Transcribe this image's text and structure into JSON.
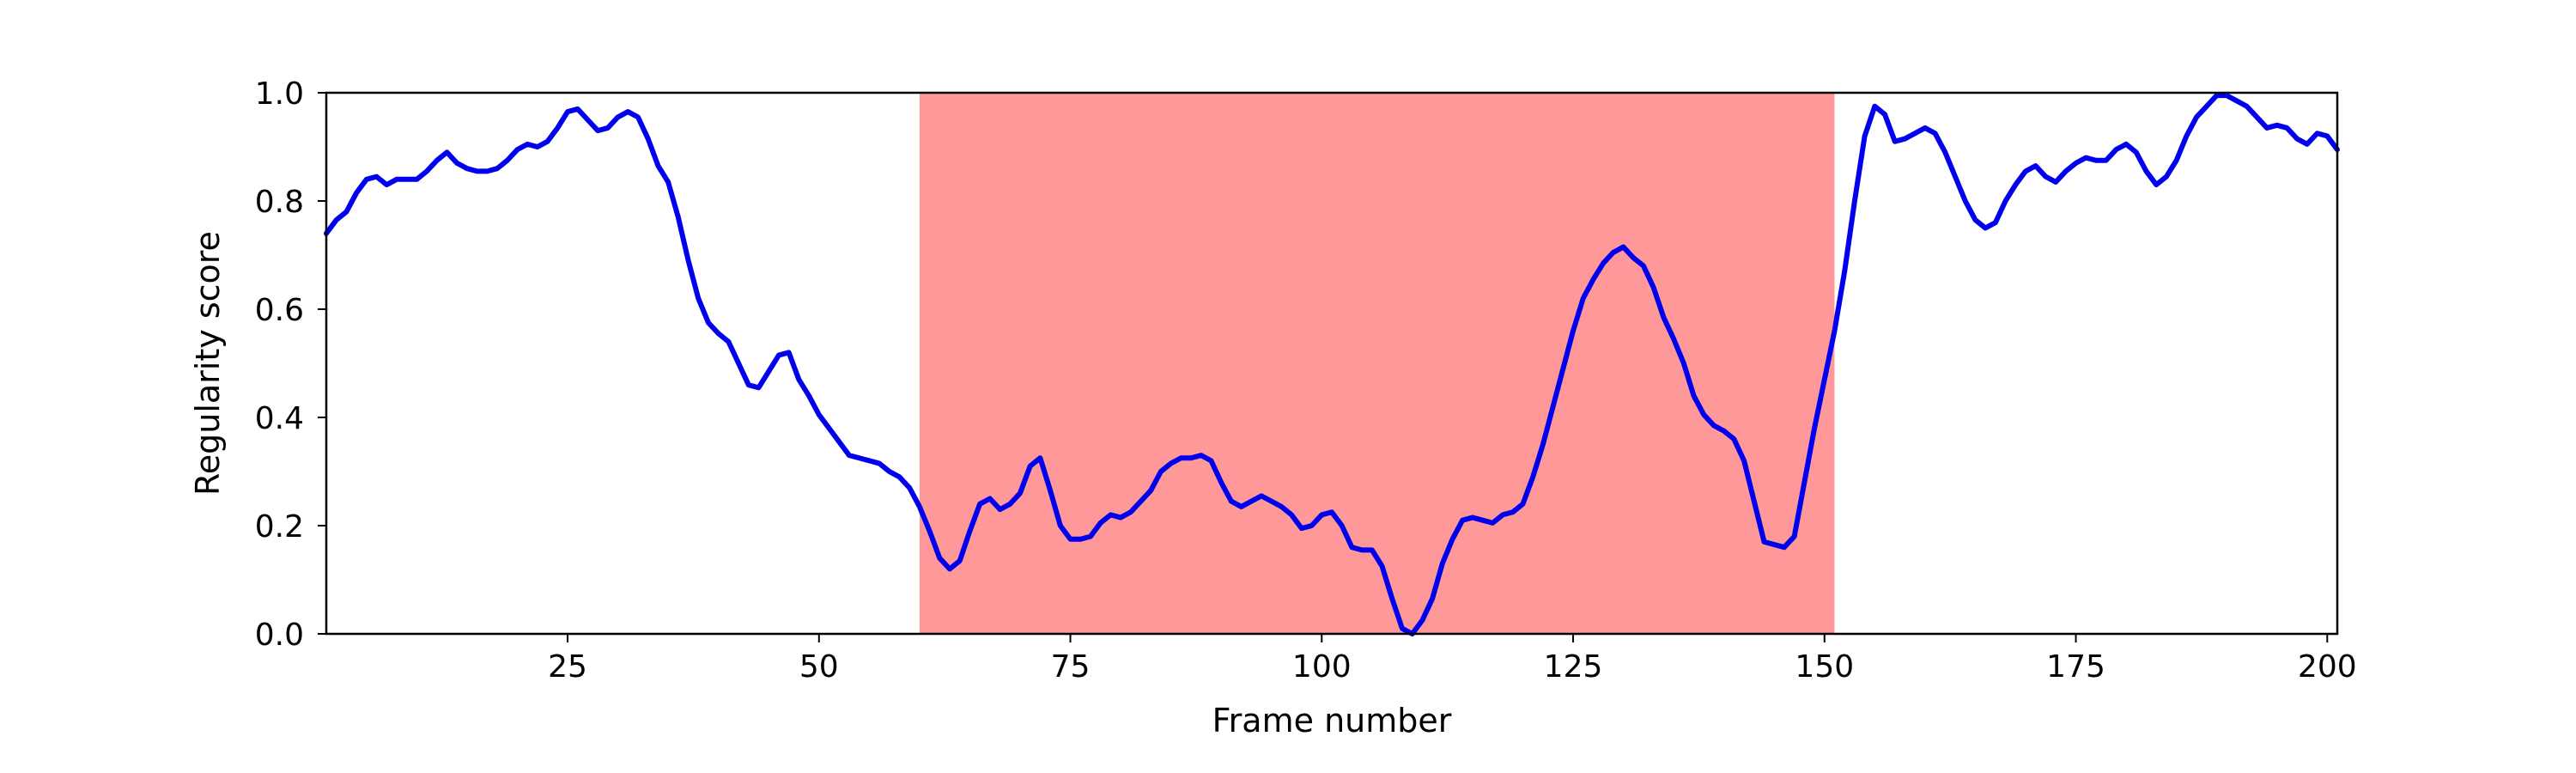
{
  "chart_data": {
    "type": "line",
    "title": "",
    "xlabel": "Frame number",
    "ylabel": "Regularity score",
    "xlim": [
      1,
      201
    ],
    "ylim": [
      0.0,
      1.0
    ],
    "xticks": [
      25,
      50,
      75,
      100,
      125,
      150,
      175,
      200
    ],
    "yticks": [
      0.0,
      0.2,
      0.4,
      0.6,
      0.8,
      1.0
    ],
    "ytick_labels": [
      "0.0",
      "0.2",
      "0.4",
      "0.6",
      "0.8",
      "1.0"
    ],
    "grid": false,
    "shaded_region": {
      "x_start": 60,
      "x_end": 151,
      "color": "#ff9999"
    },
    "series": [
      {
        "color": "#0000ee",
        "x": [
          1,
          2,
          3,
          4,
          5,
          6,
          7,
          8,
          9,
          10,
          11,
          12,
          13,
          14,
          15,
          16,
          17,
          18,
          19,
          20,
          21,
          22,
          23,
          24,
          25,
          26,
          27,
          28,
          29,
          30,
          31,
          32,
          33,
          34,
          35,
          36,
          37,
          38,
          39,
          40,
          41,
          42,
          43,
          44,
          45,
          46,
          47,
          48,
          49,
          50,
          51,
          52,
          53,
          54,
          55,
          56,
          57,
          58,
          59,
          60,
          61,
          62,
          63,
          64,
          65,
          66,
          67,
          68,
          69,
          70,
          71,
          72,
          73,
          74,
          75,
          76,
          77,
          78,
          79,
          80,
          81,
          82,
          83,
          84,
          85,
          86,
          87,
          88,
          89,
          90,
          91,
          92,
          93,
          94,
          95,
          96,
          97,
          98,
          99,
          100,
          101,
          102,
          103,
          104,
          105,
          106,
          107,
          108,
          109,
          110,
          111,
          112,
          113,
          114,
          115,
          116,
          117,
          118,
          119,
          120,
          121,
          122,
          123,
          124,
          125,
          126,
          127,
          128,
          129,
          130,
          131,
          132,
          133,
          134,
          135,
          136,
          137,
          138,
          139,
          140,
          141,
          142,
          143,
          144,
          145,
          146,
          147,
          148,
          149,
          150,
          151,
          152,
          153,
          154,
          155,
          156,
          157,
          158,
          159,
          160,
          161,
          162,
          163,
          164,
          165,
          166,
          167,
          168,
          169,
          170,
          171,
          172,
          173,
          174,
          175,
          176,
          177,
          178,
          179,
          180,
          181,
          182,
          183,
          184,
          185,
          186,
          187,
          188,
          189,
          190,
          191,
          192,
          193,
          194,
          195,
          196,
          197,
          198,
          199,
          200,
          201
        ],
        "values": [
          0.74,
          0.765,
          0.78,
          0.815,
          0.84,
          0.845,
          0.83,
          0.84,
          0.84,
          0.84,
          0.855,
          0.875,
          0.89,
          0.87,
          0.86,
          0.855,
          0.855,
          0.86,
          0.875,
          0.895,
          0.905,
          0.9,
          0.91,
          0.935,
          0.965,
          0.97,
          0.95,
          0.93,
          0.935,
          0.955,
          0.965,
          0.955,
          0.915,
          0.865,
          0.835,
          0.77,
          0.69,
          0.62,
          0.575,
          0.555,
          0.54,
          0.5,
          0.46,
          0.455,
          0.485,
          0.515,
          0.52,
          0.47,
          0.44,
          0.405,
          0.38,
          0.355,
          0.33,
          0.325,
          0.32,
          0.315,
          0.3,
          0.29,
          0.27,
          0.235,
          0.19,
          0.14,
          0.12,
          0.135,
          0.19,
          0.24,
          0.25,
          0.23,
          0.24,
          0.26,
          0.31,
          0.325,
          0.265,
          0.2,
          0.175,
          0.175,
          0.18,
          0.205,
          0.22,
          0.215,
          0.225,
          0.245,
          0.265,
          0.3,
          0.315,
          0.325,
          0.325,
          0.33,
          0.32,
          0.28,
          0.245,
          0.235,
          0.245,
          0.255,
          0.245,
          0.235,
          0.22,
          0.195,
          0.2,
          0.22,
          0.225,
          0.2,
          0.16,
          0.155,
          0.155,
          0.125,
          0.065,
          0.01,
          0.0,
          0.025,
          0.065,
          0.13,
          0.175,
          0.21,
          0.215,
          0.21,
          0.205,
          0.22,
          0.225,
          0.24,
          0.29,
          0.35,
          0.42,
          0.49,
          0.56,
          0.62,
          0.655,
          0.685,
          0.705,
          0.715,
          0.695,
          0.68,
          0.64,
          0.585,
          0.545,
          0.5,
          0.44,
          0.405,
          0.385,
          0.375,
          0.36,
          0.32,
          0.245,
          0.17,
          0.165,
          0.16,
          0.18,
          0.28,
          0.38,
          0.47,
          0.56,
          0.67,
          0.8,
          0.92,
          0.975,
          0.96,
          0.91,
          0.915,
          0.925,
          0.935,
          0.925,
          0.89,
          0.845,
          0.8,
          0.765,
          0.75,
          0.76,
          0.8,
          0.83,
          0.855,
          0.865,
          0.845,
          0.835,
          0.855,
          0.87,
          0.88,
          0.875,
          0.875,
          0.895,
          0.905,
          0.89,
          0.855,
          0.83,
          0.845,
          0.875,
          0.92,
          0.955,
          0.975,
          0.995,
          0.995,
          0.985,
          0.975,
          0.955,
          0.935,
          0.94,
          0.935,
          0.915,
          0.905,
          0.925,
          0.92,
          0.895
        ]
      }
    ]
  }
}
